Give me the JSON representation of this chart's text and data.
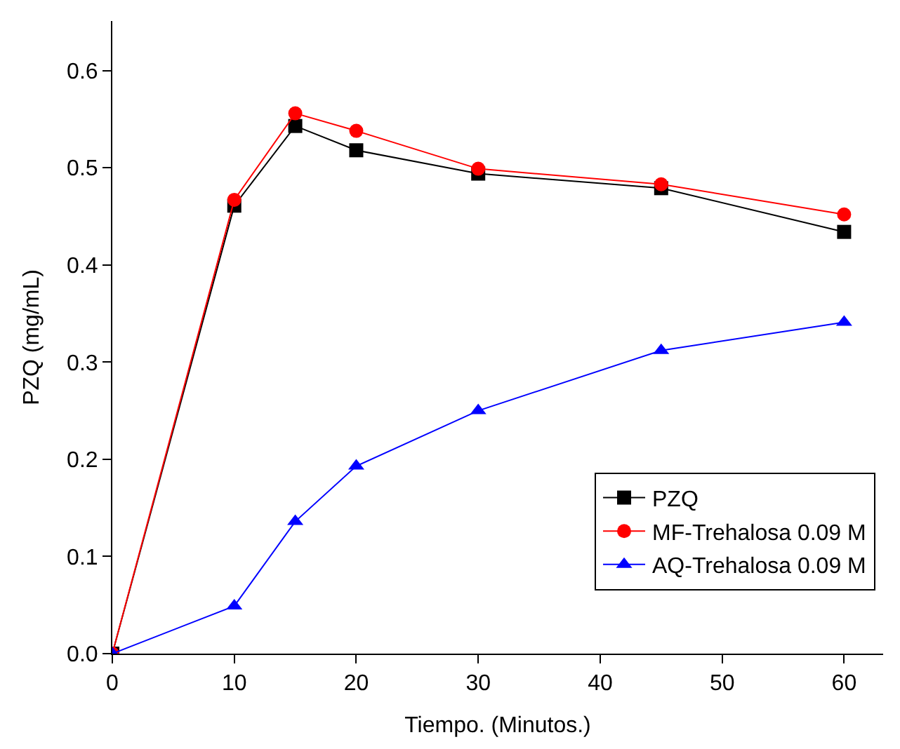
{
  "chart_data": {
    "type": "line",
    "xlabel": "Tiempo. (Minutos.)",
    "ylabel": "PZQ (mg/mL)",
    "x": [
      0,
      10,
      15,
      20,
      30,
      45,
      60
    ],
    "series": [
      {
        "name": "PZQ",
        "color": "#000000",
        "marker": "square",
        "values": [
          0,
          0.461,
          0.543,
          0.518,
          0.494,
          0.479,
          0.434
        ]
      },
      {
        "name": "MF-Trehalosa 0.09 M",
        "color": "#ff0000",
        "marker": "circle",
        "values": [
          0,
          0.467,
          0.556,
          0.538,
          0.499,
          0.483,
          0.452
        ]
      },
      {
        "name": "AQ-Trehalosa 0.09 M",
        "color": "#0000ff",
        "marker": "triangle",
        "values": [
          0,
          0.049,
          0.136,
          0.193,
          0.25,
          0.312,
          0.341
        ]
      }
    ],
    "xlim": [
      0,
      63.2
    ],
    "xticks": [
      0,
      10,
      20,
      30,
      40,
      50,
      60
    ],
    "ylim": [
      0,
      0.651
    ],
    "yticks": [
      {
        "value": 0,
        "label": "0.0"
      },
      {
        "value": 0.1,
        "label": "0.1"
      },
      {
        "value": 0.2,
        "label": "0.2"
      },
      {
        "value": 0.3,
        "label": "0.3"
      },
      {
        "value": 0.4,
        "label": "0.4"
      },
      {
        "value": 0.5,
        "label": "0.5"
      },
      {
        "value": 0.6,
        "label": "0.6"
      }
    ],
    "legend": "bottom right",
    "line_style": "solid"
  }
}
